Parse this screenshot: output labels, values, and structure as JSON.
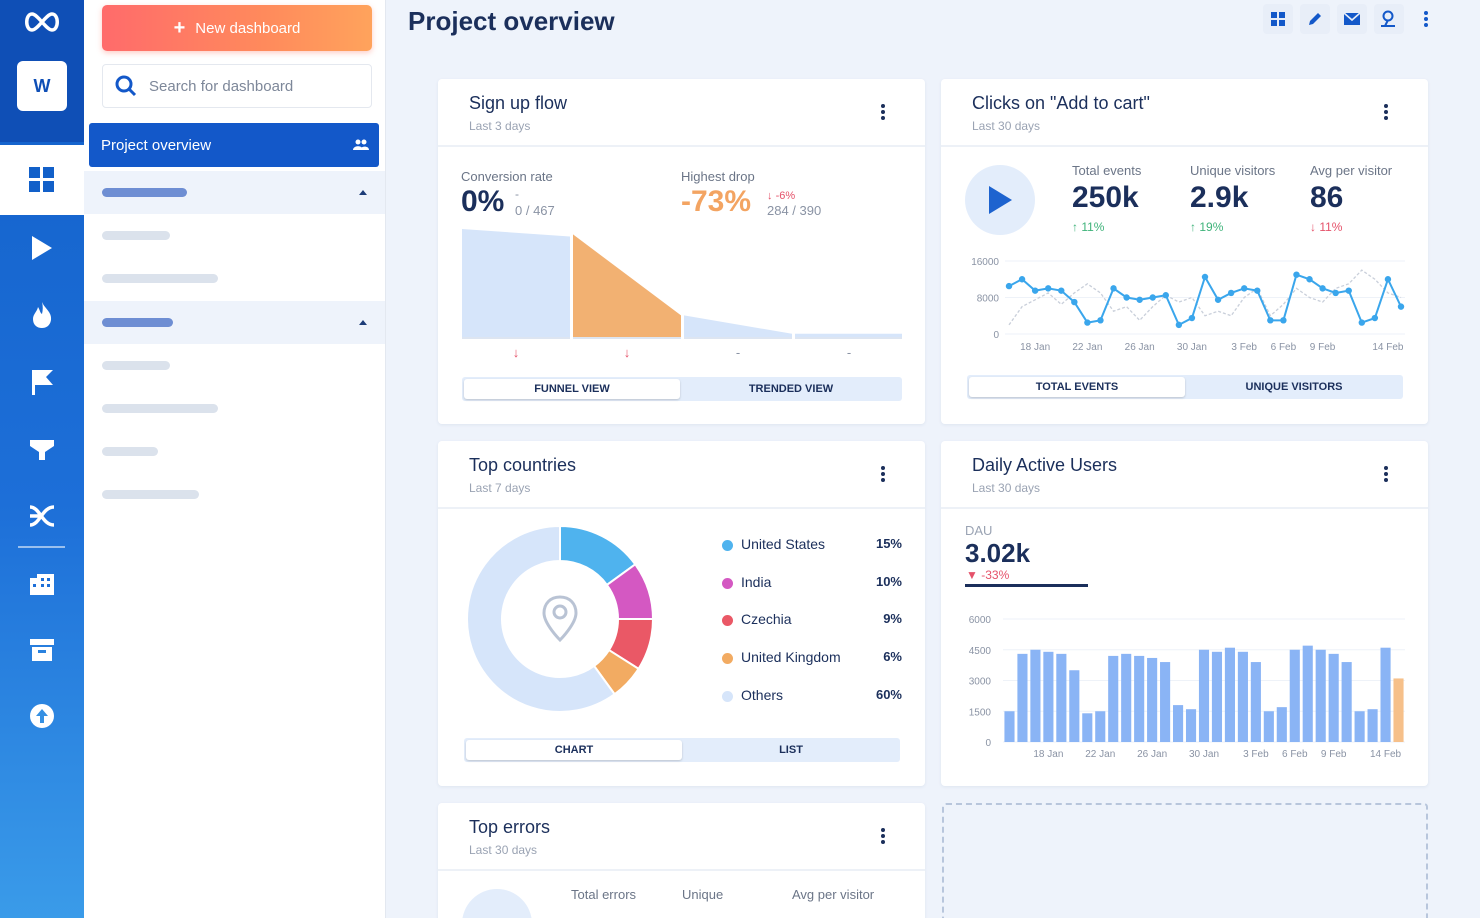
{
  "sidebar": {
    "new_dashboard": "New dashboard",
    "search_placeholder": "Search for dashboard",
    "active_item": "Project overview",
    "workspace_initial": "W"
  },
  "header": {
    "title": "Project overview"
  },
  "signup": {
    "title": "Sign up flow",
    "subtitle": "Last 3 days",
    "conv_label": "Conversion rate",
    "conv_value": "0%",
    "conv_dash": "-",
    "conv_ratio": "0 / 467",
    "drop_label": "Highest drop",
    "drop_value": "-73%",
    "drop_delta": "-6%",
    "drop_ratio": "284 / 390",
    "step_markers": [
      "↓",
      "↓",
      "-",
      "-"
    ],
    "funnel_steps": [
      1.0,
      0.95,
      0.2,
      0.03
    ],
    "toggle": [
      "FUNNEL VIEW",
      "TRENDED VIEW"
    ]
  },
  "clicks": {
    "title": "Clicks on \"Add to cart\"",
    "subtitle": "Last 30 days",
    "stats": [
      {
        "label": "Total events",
        "value": "250k",
        "delta": "11%",
        "dir": "up"
      },
      {
        "label": "Unique visitors",
        "value": "2.9k",
        "delta": "19%",
        "dir": "up"
      },
      {
        "label": "Avg per visitor",
        "value": "86",
        "delta": "11%",
        "dir": "down"
      }
    ],
    "toggle": [
      "TOTAL EVENTS",
      "UNIQUE VISITORS"
    ]
  },
  "countries": {
    "title": "Top countries",
    "subtitle": "Last 7 days",
    "items": [
      {
        "name": "United States",
        "pct": "15%",
        "value": 15,
        "color": "#4fb3ee"
      },
      {
        "name": "India",
        "pct": "10%",
        "value": 10,
        "color": "#d458c2"
      },
      {
        "name": "Czechia",
        "pct": "9%",
        "value": 9,
        "color": "#ea5866"
      },
      {
        "name": "United Kingdom",
        "pct": "6%",
        "value": 6,
        "color": "#f2ab62"
      },
      {
        "name": "Others",
        "pct": "60%",
        "value": 60,
        "color": "#d6e5fa"
      }
    ],
    "toggle": [
      "CHART",
      "LIST"
    ]
  },
  "dau": {
    "title": "Daily Active Users",
    "subtitle": "Last 30 days",
    "label": "DAU",
    "value": "3.02k",
    "delta": "-33%"
  },
  "errors": {
    "title": "Top errors",
    "subtitle": "Last 30 days",
    "cols": [
      "Total errors",
      "Unique",
      "Avg per visitor"
    ]
  },
  "chart_data": [
    {
      "type": "line",
      "title": "",
      "ylim": [
        0,
        16000
      ],
      "yticks": [
        "16000",
        "8000",
        "0"
      ],
      "x_ticks": [
        "18 Jan",
        "22 Jan",
        "26 Jan",
        "30 Jan",
        "3 Feb",
        "6 Feb",
        "9 Feb",
        "14 Feb"
      ],
      "series": [
        {
          "values": [
            10500,
            12000,
            9500,
            10000,
            9500,
            7000,
            2500,
            3000,
            10000,
            8000,
            7500,
            8000,
            8500,
            2000,
            3500,
            12500,
            7500,
            9000,
            10000,
            9500,
            3000,
            3000,
            13000,
            12000,
            10000,
            9000,
            9500,
            2500,
            3500,
            12000,
            6000
          ]
        },
        {
          "values": [
            2000,
            6000,
            7500,
            9000,
            6500,
            9000,
            11000,
            9000,
            5000,
            6000,
            3000,
            6000,
            8500,
            7000,
            8000,
            4000,
            5000,
            4000,
            8000,
            10000,
            4000,
            6500,
            10000,
            8000,
            7000,
            10000,
            11000,
            14000,
            12000,
            9000,
            8000
          ]
        }
      ]
    },
    {
      "type": "bar",
      "title": "",
      "ylim": [
        0,
        6000
      ],
      "yticks": [
        "6000",
        "4500",
        "3000",
        "1500",
        "0"
      ],
      "x_ticks": [
        "18 Jan",
        "22 Jan",
        "26 Jan",
        "30 Jan",
        "3 Feb",
        "6 Feb",
        "9 Feb",
        "14 Feb"
      ],
      "series": [
        {
          "values": [
            1500,
            4300,
            4500,
            4400,
            4300,
            3500,
            1400,
            1500,
            4200,
            4300,
            4200,
            4100,
            3900,
            1800,
            1600,
            4500,
            4400,
            4600,
            4400,
            3900,
            1500,
            1700,
            4500,
            4700,
            4500,
            4300,
            3900,
            1500,
            1600,
            4600,
            3100
          ]
        }
      ]
    },
    {
      "type": "pie",
      "title": "",
      "categories": [
        "United States",
        "India",
        "Czechia",
        "United Kingdom",
        "Others"
      ],
      "values": [
        15,
        10,
        9,
        6,
        60
      ]
    }
  ]
}
